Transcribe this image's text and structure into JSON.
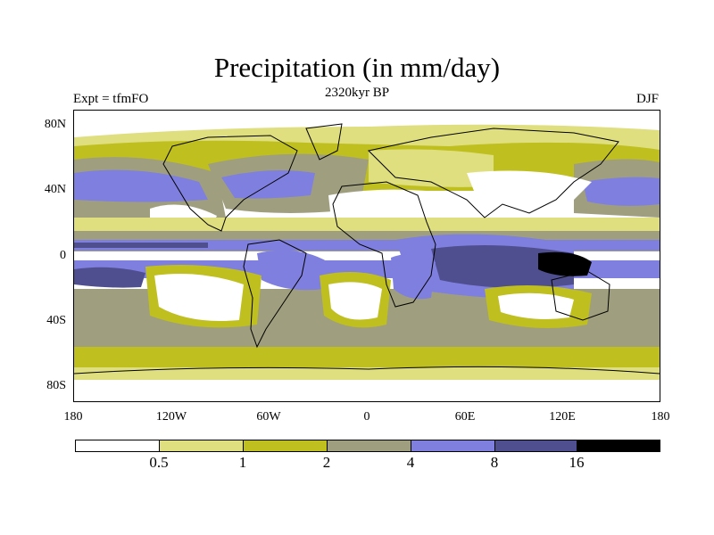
{
  "title": "Precipitation (in mm/day)",
  "subtitle": "2320kyr BP",
  "experiment_label": "Expt = tfmFO",
  "season_label": "DJF",
  "map": {
    "projection": "cylindrical equidistant",
    "lon_range": [
      -180,
      180
    ],
    "lat_range": [
      -90,
      90
    ],
    "y_tick_labels": [
      "80N",
      "40N",
      "0",
      "40S",
      "80S"
    ],
    "x_tick_labels": [
      "180",
      "120W",
      "60W",
      "0",
      "60E",
      "120E",
      "180"
    ]
  },
  "legend": {
    "boundaries": [
      "0.5",
      "1",
      "2",
      "4",
      "8",
      "16"
    ],
    "colors": [
      "#ffffff",
      "#dfdf7f",
      "#bfbf1f",
      "#9f9f7f",
      "#7f7fdf",
      "#4f4f8f",
      "#000000"
    ],
    "color_names": [
      "white",
      "pale-yellow",
      "olive-yellow",
      "gray",
      "periwinkle",
      "dark-slate-blue",
      "black"
    ]
  },
  "chart_data": {
    "type": "heatmap",
    "title": "Precipitation (in mm/day)",
    "subtitle": "2320kyr BP",
    "variable": "precipitation",
    "units": "mm/day",
    "season": "DJF",
    "experiment": "tfmFO",
    "contour_levels": [
      0.5,
      1,
      2,
      4,
      8,
      16
    ],
    "xlabel": "",
    "ylabel": "",
    "xlim": [
      -180,
      180
    ],
    "ylim": [
      -90,
      90
    ]
  }
}
